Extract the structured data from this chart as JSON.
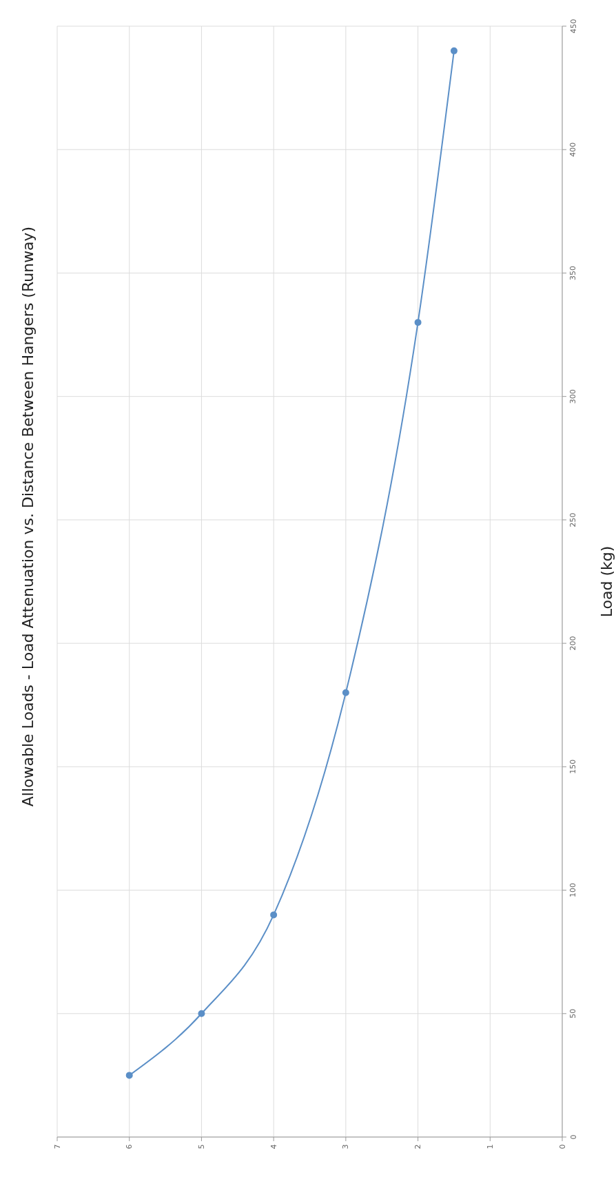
{
  "chart_data": {
    "type": "line",
    "title": "Allowable Loads - Load Attenuation vs. Distance Between Hangers (Runway)",
    "ylabel": "Load (kg)",
    "x": [
      6,
      5,
      4,
      3,
      2,
      1.5
    ],
    "series": [
      {
        "color": "#5b8fc7",
        "values": [
          25,
          50,
          90,
          180,
          330,
          440
        ]
      }
    ],
    "xlim": [
      7,
      0
    ],
    "xticks": [
      7,
      6,
      5,
      4,
      3,
      2,
      1,
      0
    ],
    "ylim": [
      0,
      450
    ],
    "yticks": [
      0,
      50,
      100,
      150,
      200,
      250,
      300,
      350,
      400,
      450
    ],
    "grid": true,
    "marker": "circle",
    "line_style": "solid"
  }
}
